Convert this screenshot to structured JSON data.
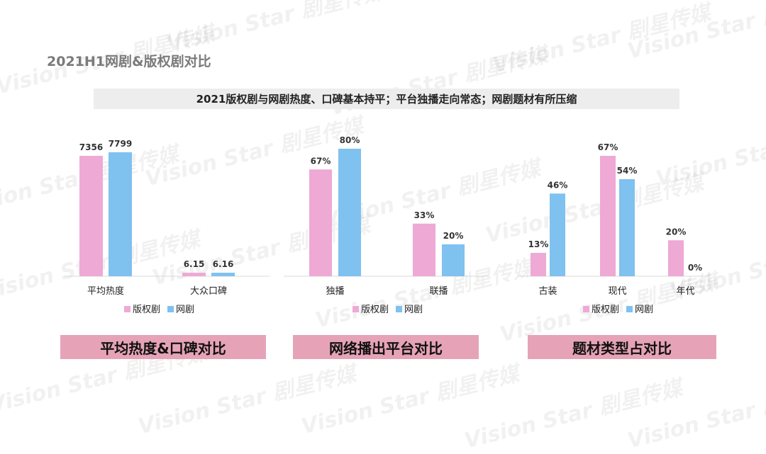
{
  "page_title": "2021H1网剧&版权剧对比",
  "subtitle": "2021版权剧与网剧热度、口碑基本持平；平台独播走向常态；网剧题材有所压缩",
  "watermark_text": "Vision Star 剧星传媒",
  "colors": {
    "series_1": "#eea9d5",
    "series_2": "#7fc1ef",
    "label_bar": "#e6a3b8"
  },
  "panels": [
    {
      "label": "平均热度&口碑对比"
    },
    {
      "label": "网络播出平台对比"
    },
    {
      "label": "题材类型占对比"
    }
  ],
  "chart_data": [
    {
      "type": "bar",
      "categories": [
        "平均热度",
        "大众口碑"
      ],
      "series": [
        {
          "name": "版权剧",
          "values": [
            7356,
            6.15
          ],
          "labels": [
            "7356",
            "6.15"
          ]
        },
        {
          "name": "网剧",
          "values": [
            7799,
            6.16
          ],
          "labels": [
            "7799",
            "6.16"
          ]
        }
      ],
      "legend": "bottom",
      "grid": false
    },
    {
      "type": "bar",
      "categories": [
        "独播",
        "联播"
      ],
      "series": [
        {
          "name": "版权剧",
          "values": [
            67,
            33
          ],
          "labels": [
            "67%",
            "33%"
          ]
        },
        {
          "name": "网剧",
          "values": [
            80,
            20
          ],
          "labels": [
            "80%",
            "20%"
          ]
        }
      ],
      "ylim": [
        0,
        100
      ],
      "legend": "bottom",
      "grid": false
    },
    {
      "type": "bar",
      "categories": [
        "古装",
        "现代",
        "年代"
      ],
      "series": [
        {
          "name": "版权剧",
          "values": [
            13,
            67,
            20
          ],
          "labels": [
            "13%",
            "67%",
            "20%"
          ]
        },
        {
          "name": "网剧",
          "values": [
            46,
            54,
            0
          ],
          "labels": [
            "46%",
            "54%",
            "0%"
          ]
        }
      ],
      "ylim": [
        0,
        100
      ],
      "legend": "bottom",
      "grid": false
    }
  ]
}
